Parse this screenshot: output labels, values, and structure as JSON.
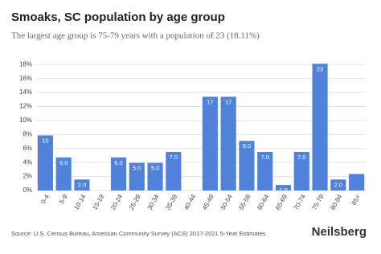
{
  "chart_data": {
    "type": "bar",
    "title": "Smoaks, SC population by age group",
    "subtitle": "The largest age group is 75-79 years with a population of 23 (18.11%)",
    "categories": [
      "0-4",
      "5-9",
      "10-14",
      "15-19",
      "20-24",
      "25-29",
      "30-34",
      "35-39",
      "40-44",
      "45-49",
      "50-54",
      "55-59",
      "60-64",
      "65-69",
      "70-74",
      "75-79",
      "80-84",
      "85+"
    ],
    "values": [
      7.87,
      4.72,
      1.57,
      0,
      4.72,
      3.94,
      3.94,
      5.51,
      0,
      13.39,
      13.39,
      7.09,
      5.51,
      0.79,
      5.51,
      18.11,
      1.57,
      2.36
    ],
    "value_labels": [
      "10",
      "6.0",
      "2.0",
      null,
      "6.0",
      "5.0",
      "5.0",
      "7.0",
      null,
      "17",
      "17",
      "9.0",
      "7.0",
      "1.0",
      "7.0",
      "23",
      "2.0",
      null
    ],
    "color": "#4f82d8",
    "ylim": [
      0,
      18.6
    ],
    "yticks": [
      {
        "value": 0,
        "label": "0%"
      },
      {
        "value": 2,
        "label": "2%"
      },
      {
        "value": 4,
        "label": "4%"
      },
      {
        "value": 6,
        "label": "6%"
      },
      {
        "value": 8,
        "label": "8%"
      },
      {
        "value": 10,
        "label": "10%"
      },
      {
        "value": 12,
        "label": "12%"
      },
      {
        "value": 14,
        "label": "14%"
      },
      {
        "value": 16,
        "label": "16%"
      },
      {
        "value": 18,
        "label": "18%"
      }
    ],
    "grid": true,
    "source": "Source: U.S. Census Bureau, American Community Survey (ACS) 2017-2021 5-Year Estimates",
    "brand": "Neilsberg"
  }
}
